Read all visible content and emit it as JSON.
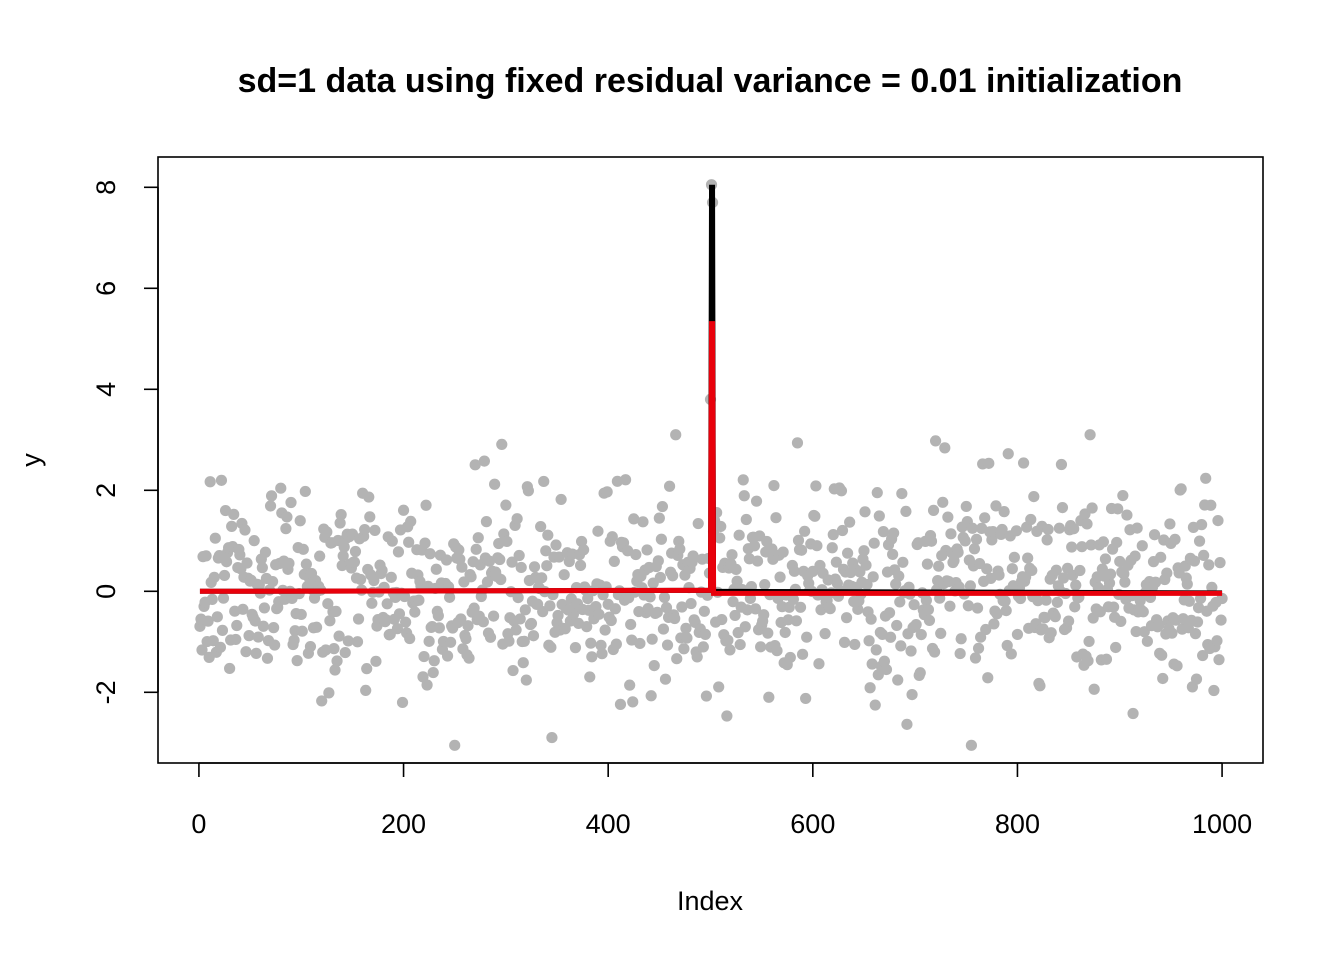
{
  "chart_data": {
    "type": "scatter",
    "title": "sd=1 data using fixed residual variance = 0.01 initialization",
    "xlabel": "Index",
    "ylabel": "y",
    "xlim": [
      -40,
      1040
    ],
    "ylim": [
      -3.4,
      8.6
    ],
    "x_ticks": [
      0,
      200,
      400,
      600,
      800,
      1000
    ],
    "y_ticks": [
      -2,
      0,
      2,
      4,
      6,
      8
    ],
    "x_tick_labels": [
      "0",
      "200",
      "400",
      "600",
      "800",
      "1000"
    ],
    "y_tick_labels": [
      "-2",
      "0",
      "2",
      "4",
      "6",
      "8"
    ],
    "grid": false,
    "point_color": "#b3b3b3",
    "points": {
      "n": 1000,
      "noise_sd": 1,
      "spike_index": 501,
      "spike_values": {
        "500": 3.8,
        "501": 8.05,
        "502": 7.7
      }
    },
    "series": [
      {
        "color": "#000000",
        "type": "line",
        "x": [
          1,
          500,
          501,
          502,
          503,
          1000
        ],
        "y": [
          0.0,
          0.02,
          8.0,
          8.0,
          0.0,
          -0.03
        ]
      },
      {
        "color": "#e8000b",
        "type": "line",
        "x": [
          1,
          500,
          501,
          502,
          503,
          1000
        ],
        "y": [
          0.0,
          0.02,
          5.3,
          5.3,
          -0.04,
          -0.04
        ]
      }
    ]
  }
}
